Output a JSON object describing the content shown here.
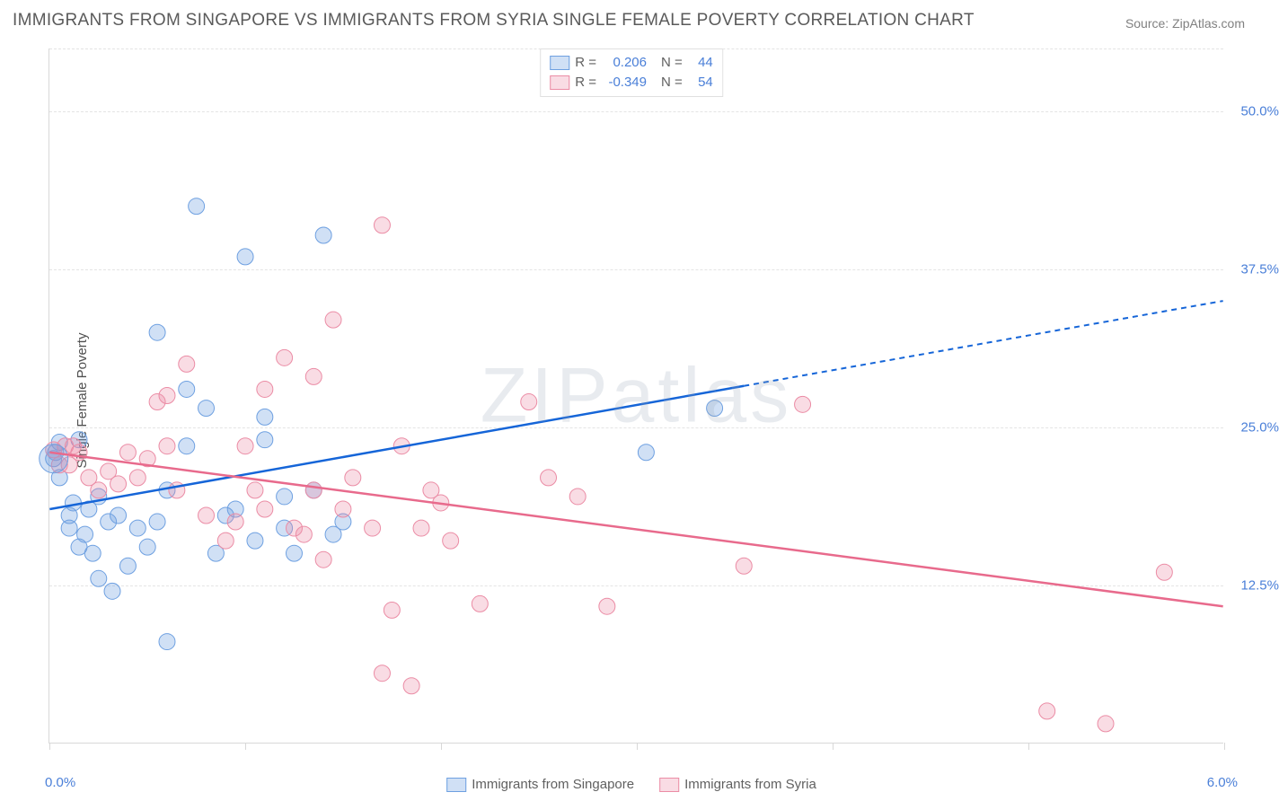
{
  "title": "IMMIGRANTS FROM SINGAPORE VS IMMIGRANTS FROM SYRIA SINGLE FEMALE POVERTY CORRELATION CHART",
  "source": "Source: ZipAtlas.com",
  "ylabel": "Single Female Poverty",
  "watermark": "ZIPatlas",
  "chart": {
    "type": "scatter_with_regression",
    "xlim": [
      0.0,
      6.0
    ],
    "ylim": [
      0.0,
      55.0
    ],
    "yticks": [
      12.5,
      25.0,
      37.5,
      50.0
    ],
    "ytick_labels": [
      "12.5%",
      "25.0%",
      "37.5%",
      "50.0%"
    ],
    "xticks": [
      0.0,
      1.0,
      2.0,
      3.0,
      4.0,
      5.0,
      6.0
    ],
    "xtick_labels_shown": {
      "min": "0.0%",
      "max": "6.0%"
    },
    "grid_color": "#e4e4e4",
    "axis_color": "#d8d8d8",
    "background_color": "#ffffff",
    "tick_label_color": "#4a7fd8",
    "tick_fontsize": 15,
    "title_fontsize": 19,
    "label_fontsize": 15,
    "title_color": "#5a5a5a",
    "series": [
      {
        "name": "Immigrants from Singapore",
        "fill_color": "rgba(110,160,225,0.32)",
        "stroke_color": "#6ea0e1",
        "line_color": "#1565d8",
        "marker_radius": 9,
        "R": 0.206,
        "N": 44,
        "regression": {
          "x1": 0.0,
          "y1": 18.5,
          "x2": 6.0,
          "y2": 35.0,
          "solid_until_x": 3.55
        },
        "points": [
          [
            0.02,
            22.5
          ],
          [
            0.03,
            23.0
          ],
          [
            0.05,
            23.8
          ],
          [
            0.05,
            21.0
          ],
          [
            0.1,
            18.0
          ],
          [
            0.1,
            17.0
          ],
          [
            0.12,
            19.0
          ],
          [
            0.15,
            24.0
          ],
          [
            0.15,
            15.5
          ],
          [
            0.18,
            16.5
          ],
          [
            0.2,
            18.5
          ],
          [
            0.22,
            15.0
          ],
          [
            0.25,
            19.5
          ],
          [
            0.25,
            13.0
          ],
          [
            0.3,
            17.5
          ],
          [
            0.32,
            12.0
          ],
          [
            0.35,
            18.0
          ],
          [
            0.4,
            14.0
          ],
          [
            0.45,
            17.0
          ],
          [
            0.5,
            15.5
          ],
          [
            0.55,
            17.5
          ],
          [
            0.55,
            32.5
          ],
          [
            0.6,
            8.0
          ],
          [
            0.6,
            20.0
          ],
          [
            0.7,
            23.5
          ],
          [
            0.7,
            28.0
          ],
          [
            0.75,
            42.5
          ],
          [
            0.8,
            26.5
          ],
          [
            0.85,
            15.0
          ],
          [
            0.9,
            18.0
          ],
          [
            0.95,
            18.5
          ],
          [
            1.0,
            38.5
          ],
          [
            1.05,
            16.0
          ],
          [
            1.1,
            24.0
          ],
          [
            1.1,
            25.8
          ],
          [
            1.2,
            17.0
          ],
          [
            1.2,
            19.5
          ],
          [
            1.25,
            15.0
          ],
          [
            1.35,
            20.0
          ],
          [
            1.4,
            40.2
          ],
          [
            1.45,
            16.5
          ],
          [
            1.5,
            17.5
          ],
          [
            3.05,
            23.0
          ],
          [
            3.4,
            26.5
          ]
        ]
      },
      {
        "name": "Immigrants from Syria",
        "fill_color": "rgba(235,140,165,0.30)",
        "stroke_color": "#eb8ca5",
        "line_color": "#e86a8c",
        "marker_radius": 9,
        "R": -0.349,
        "N": 54,
        "regression": {
          "x1": 0.0,
          "y1": 23.0,
          "x2": 6.0,
          "y2": 10.8,
          "solid_until_x": 6.0
        },
        "points": [
          [
            0.02,
            23.2
          ],
          [
            0.05,
            22.0
          ],
          [
            0.08,
            23.5
          ],
          [
            0.1,
            22.0
          ],
          [
            0.12,
            23.5
          ],
          [
            0.15,
            23.0
          ],
          [
            0.2,
            21.0
          ],
          [
            0.25,
            20.0
          ],
          [
            0.3,
            21.5
          ],
          [
            0.35,
            20.5
          ],
          [
            0.4,
            23.0
          ],
          [
            0.45,
            21.0
          ],
          [
            0.5,
            22.5
          ],
          [
            0.55,
            27.0
          ],
          [
            0.6,
            23.5
          ],
          [
            0.6,
            27.5
          ],
          [
            0.65,
            20.0
          ],
          [
            0.7,
            30.0
          ],
          [
            0.8,
            18.0
          ],
          [
            0.9,
            16.0
          ],
          [
            0.95,
            17.5
          ],
          [
            1.0,
            23.5
          ],
          [
            1.05,
            20.0
          ],
          [
            1.1,
            18.5
          ],
          [
            1.1,
            28.0
          ],
          [
            1.2,
            30.5
          ],
          [
            1.25,
            17.0
          ],
          [
            1.3,
            16.5
          ],
          [
            1.35,
            20.0
          ],
          [
            1.35,
            29.0
          ],
          [
            1.4,
            14.5
          ],
          [
            1.45,
            33.5
          ],
          [
            1.5,
            18.5
          ],
          [
            1.55,
            21.0
          ],
          [
            1.65,
            17.0
          ],
          [
            1.7,
            41.0
          ],
          [
            1.7,
            5.5
          ],
          [
            1.75,
            10.5
          ],
          [
            1.8,
            23.5
          ],
          [
            1.85,
            4.5
          ],
          [
            1.9,
            17.0
          ],
          [
            1.95,
            20.0
          ],
          [
            2.0,
            19.0
          ],
          [
            2.05,
            16.0
          ],
          [
            2.2,
            11.0
          ],
          [
            2.45,
            27.0
          ],
          [
            2.55,
            21.0
          ],
          [
            2.7,
            19.5
          ],
          [
            2.85,
            10.8
          ],
          [
            3.55,
            14.0
          ],
          [
            3.85,
            26.8
          ],
          [
            5.1,
            2.5
          ],
          [
            5.4,
            1.5
          ],
          [
            5.7,
            13.5
          ]
        ]
      }
    ]
  },
  "legend": {
    "top": {
      "rows": [
        {
          "swatch": 0,
          "R_label": "R =",
          "R_val": "0.206",
          "N_label": "N =",
          "N_val": "44"
        },
        {
          "swatch": 1,
          "R_label": "R =",
          "R_val": "-0.349",
          "N_label": "N =",
          "N_val": "54"
        }
      ]
    },
    "bottom": {
      "items": [
        {
          "swatch": 0,
          "label": "Immigrants from Singapore"
        },
        {
          "swatch": 1,
          "label": "Immigrants from Syria"
        }
      ]
    }
  }
}
